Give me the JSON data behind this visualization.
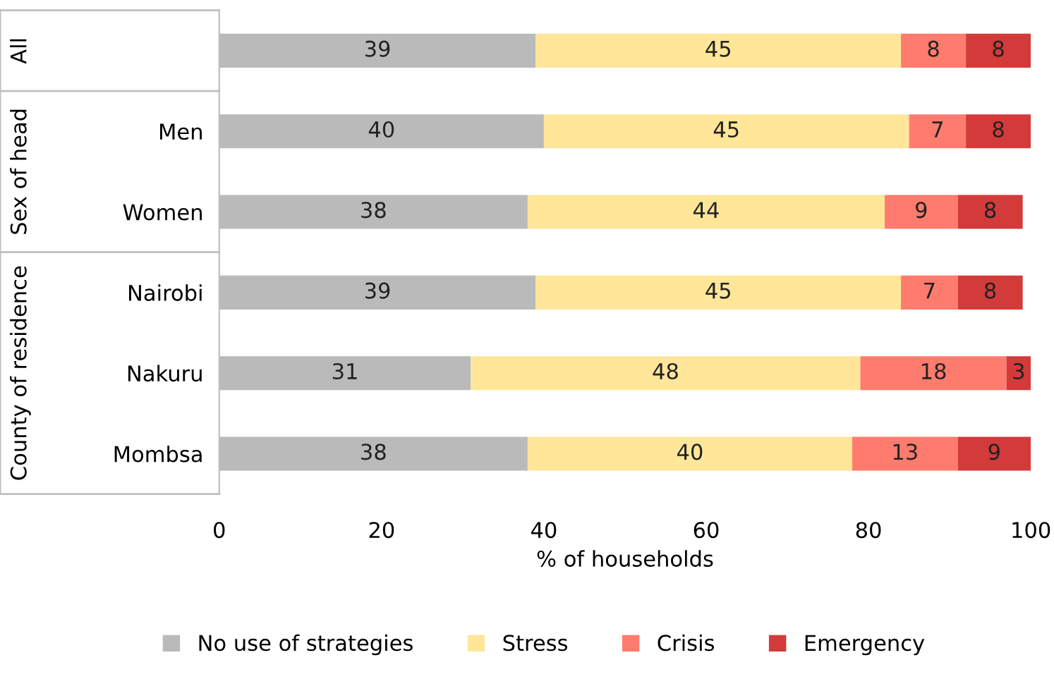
{
  "chart_data": {
    "type": "bar",
    "orientation": "horizontal",
    "stacked": true,
    "categories": [
      null,
      "Men",
      "Women",
      "Nairobi",
      "Nakuru",
      "Mombsa"
    ],
    "series": [
      {
        "name": "No use of strategies",
        "color": "#bababa",
        "values": [
          39,
          40,
          38,
          39,
          31,
          38
        ]
      },
      {
        "name": "Stress",
        "color": "#ffe699",
        "values": [
          45,
          45,
          44,
          45,
          48,
          40
        ]
      },
      {
        "name": "Crisis",
        "color": "#ff7b6e",
        "values": [
          8,
          7,
          9,
          7,
          18,
          13
        ]
      },
      {
        "name": "Emergency",
        "color": "#d33a3a",
        "values": [
          8,
          8,
          8,
          8,
          3,
          9
        ]
      }
    ],
    "xlabel": "% of households",
    "xlim": [
      0,
      100
    ],
    "xticks": [
      0,
      20,
      40,
      60,
      80,
      100
    ],
    "data_labels": true,
    "grid": false,
    "legend": "bottom",
    "annotations": [
      "All",
      "Sex of head",
      "County of residence"
    ]
  }
}
